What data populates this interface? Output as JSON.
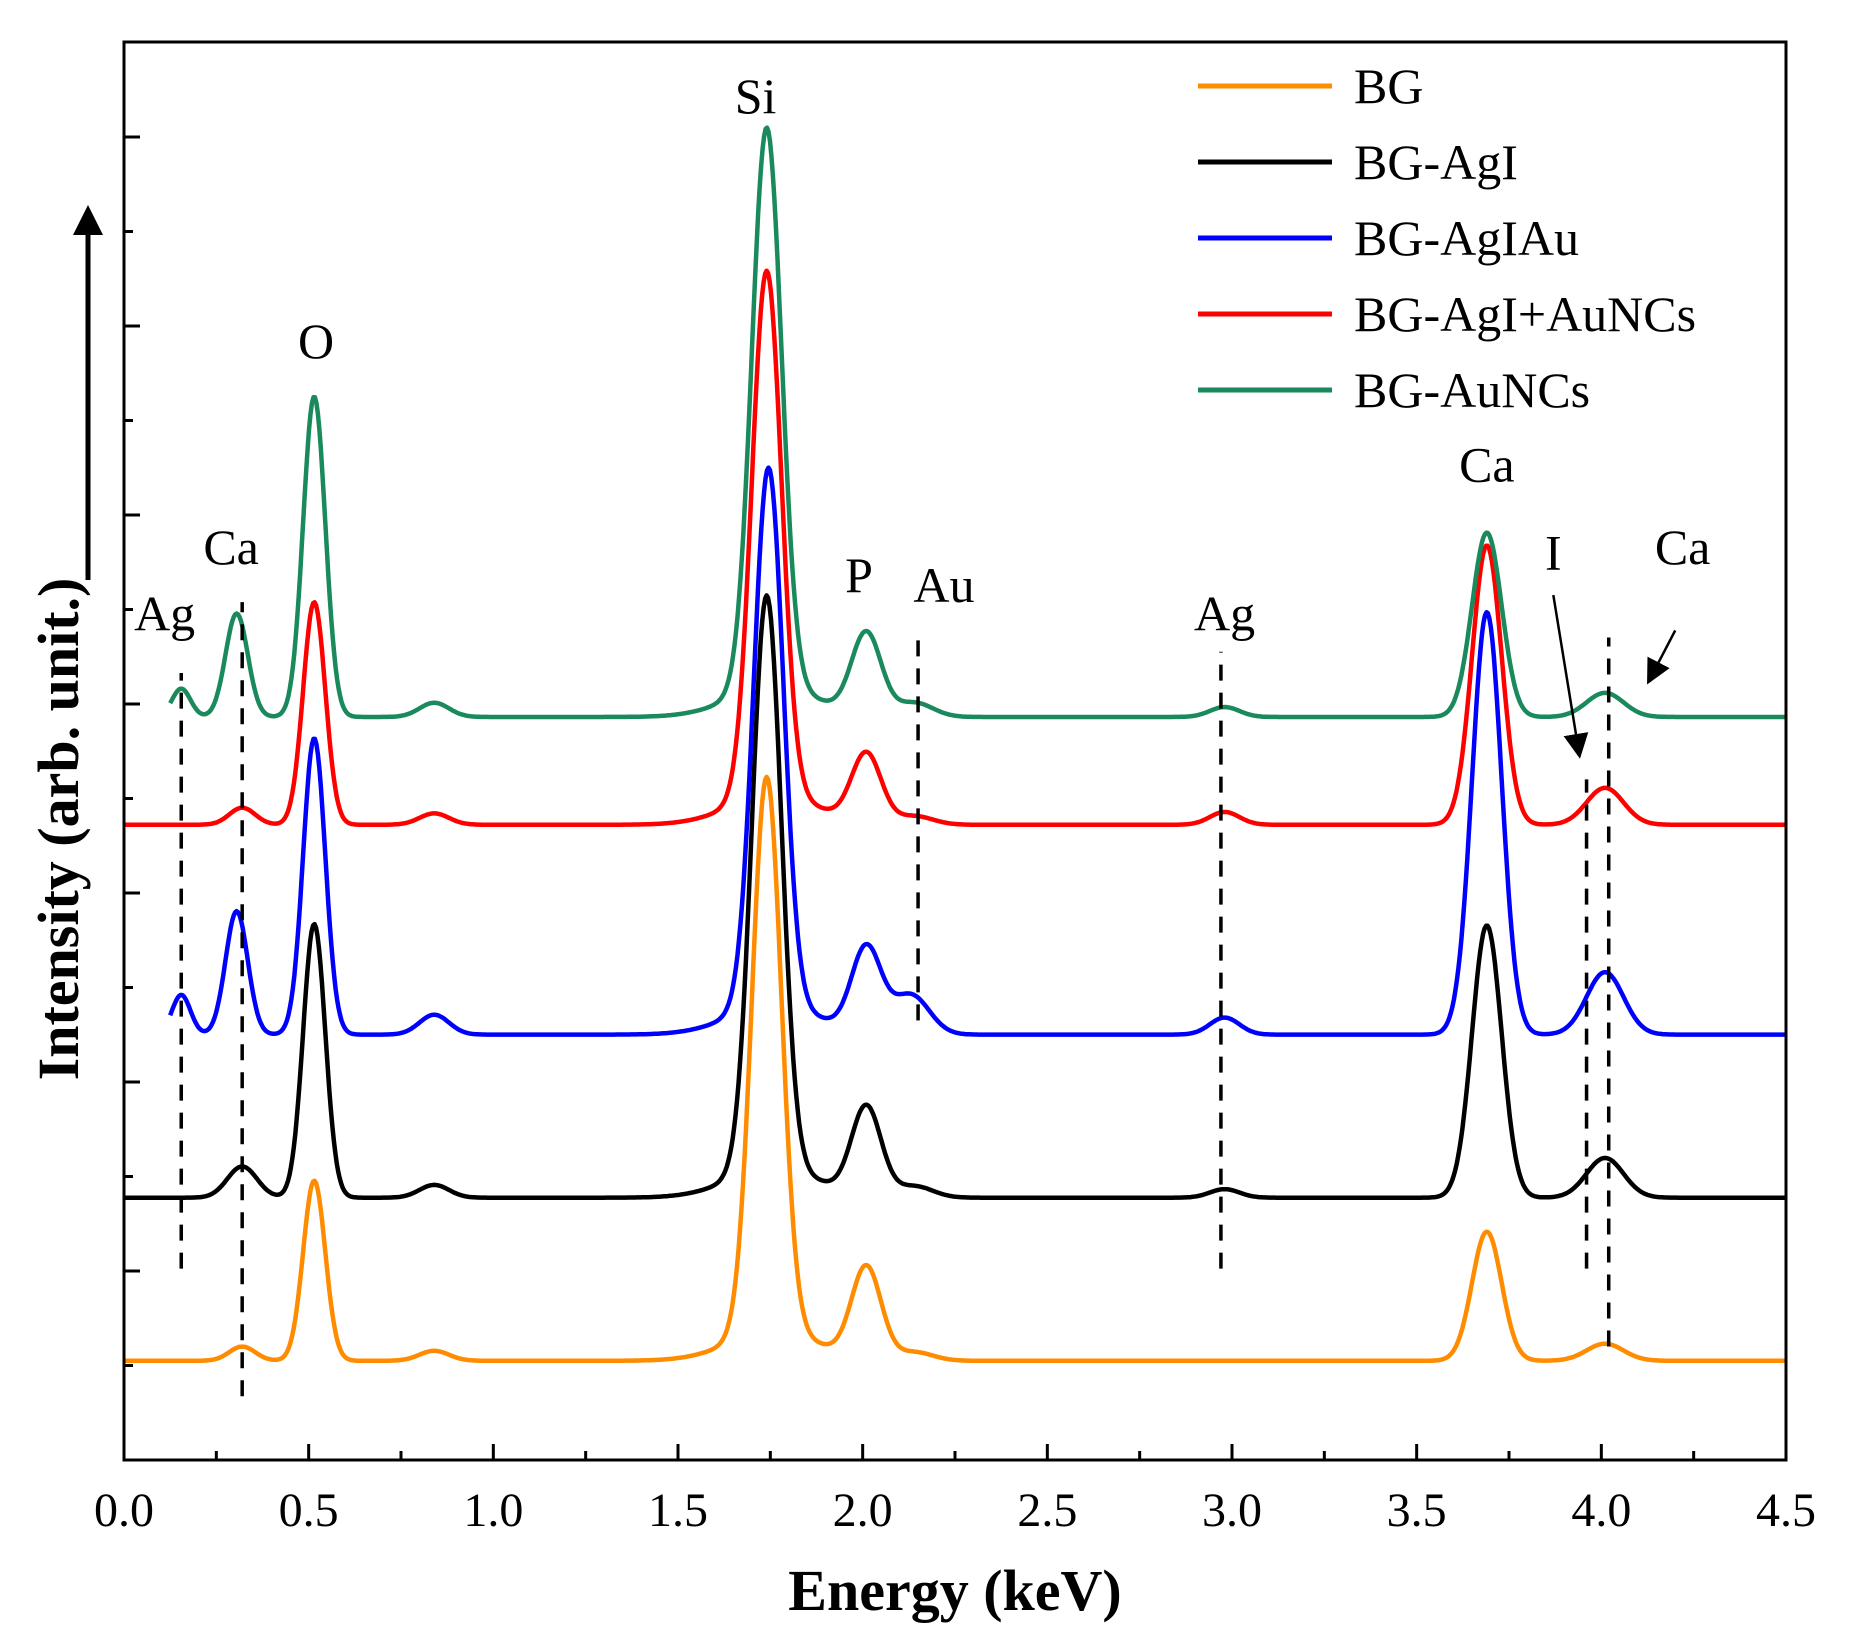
{
  "chart_data": {
    "type": "line",
    "title": "",
    "xlabel": "Energy (keV)",
    "ylabel": "Intensity (arb. unit.)",
    "xlim": [
      0.0,
      4.5
    ],
    "ylim": [
      0,
      1
    ],
    "xticks": [
      "0.0",
      "0.5",
      "1.0",
      "1.5",
      "2.0",
      "2.5",
      "3.0",
      "3.5",
      "4.0",
      "4.5"
    ],
    "y_tick_labels_shown": false,
    "grid": false,
    "legend_position": "top-right",
    "series": [
      {
        "name": "BG",
        "color": "#ff8c00",
        "baseline": 0.07,
        "peaks": [
          {
            "x": 0.32,
            "h": 0.01,
            "w": 0.035
          },
          {
            "x": 0.515,
            "h": 0.127,
            "w": 0.03
          },
          {
            "x": 0.84,
            "h": 0.007,
            "w": 0.04
          },
          {
            "x": 1.74,
            "h": 0.392,
            "w": 0.04
          },
          {
            "x": 1.76,
            "h": 0.02,
            "w": 0.12
          },
          {
            "x": 2.01,
            "h": 0.065,
            "w": 0.04
          },
          {
            "x": 2.14,
            "h": 0.006,
            "w": 0.05
          },
          {
            "x": 3.69,
            "h": 0.091,
            "w": 0.04
          },
          {
            "x": 4.01,
            "h": 0.012,
            "w": 0.05
          }
        ]
      },
      {
        "name": "BG-AgI",
        "color": "#000000",
        "baseline": 0.185,
        "peaks": [
          {
            "x": 0.32,
            "h": 0.022,
            "w": 0.04
          },
          {
            "x": 0.515,
            "h": 0.193,
            "w": 0.03
          },
          {
            "x": 0.84,
            "h": 0.009,
            "w": 0.04
          },
          {
            "x": 1.74,
            "h": 0.405,
            "w": 0.04
          },
          {
            "x": 1.76,
            "h": 0.02,
            "w": 0.12
          },
          {
            "x": 2.01,
            "h": 0.063,
            "w": 0.04
          },
          {
            "x": 2.14,
            "h": 0.008,
            "w": 0.05
          },
          {
            "x": 2.98,
            "h": 0.006,
            "w": 0.04
          },
          {
            "x": 3.69,
            "h": 0.192,
            "w": 0.04
          },
          {
            "x": 4.01,
            "h": 0.028,
            "w": 0.05
          }
        ]
      },
      {
        "name": "BG-AgIAu",
        "color": "#0000ff",
        "baseline": 0.3,
        "peaks": [
          {
            "x": 0.155,
            "h": 0.028,
            "w": 0.025
          },
          {
            "x": 0.305,
            "h": 0.087,
            "w": 0.03
          },
          {
            "x": 0.515,
            "h": 0.209,
            "w": 0.03
          },
          {
            "x": 0.84,
            "h": 0.014,
            "w": 0.04
          },
          {
            "x": 1.745,
            "h": 0.38,
            "w": 0.04
          },
          {
            "x": 1.76,
            "h": 0.02,
            "w": 0.12
          },
          {
            "x": 2.01,
            "h": 0.06,
            "w": 0.04
          },
          {
            "x": 2.13,
            "h": 0.028,
            "w": 0.05
          },
          {
            "x": 2.98,
            "h": 0.012,
            "w": 0.04
          },
          {
            "x": 3.69,
            "h": 0.298,
            "w": 0.04
          },
          {
            "x": 4.01,
            "h": 0.044,
            "w": 0.05
          }
        ]
      },
      {
        "name": "BG-AgI+AuNCs",
        "color": "#ff0000",
        "baseline": 0.448,
        "peaks": [
          {
            "x": 0.32,
            "h": 0.012,
            "w": 0.035
          },
          {
            "x": 0.515,
            "h": 0.157,
            "w": 0.03
          },
          {
            "x": 0.84,
            "h": 0.008,
            "w": 0.04
          },
          {
            "x": 1.74,
            "h": 0.371,
            "w": 0.04
          },
          {
            "x": 1.76,
            "h": 0.02,
            "w": 0.12
          },
          {
            "x": 2.01,
            "h": 0.049,
            "w": 0.04
          },
          {
            "x": 2.14,
            "h": 0.006,
            "w": 0.05
          },
          {
            "x": 2.98,
            "h": 0.009,
            "w": 0.04
          },
          {
            "x": 3.69,
            "h": 0.197,
            "w": 0.04
          },
          {
            "x": 4.01,
            "h": 0.026,
            "w": 0.05
          }
        ]
      },
      {
        "name": "BG-AuNCs",
        "color": "#1a8a5c",
        "baseline": 0.524,
        "peaks": [
          {
            "x": 0.155,
            "h": 0.02,
            "w": 0.025
          },
          {
            "x": 0.305,
            "h": 0.073,
            "w": 0.03
          },
          {
            "x": 0.515,
            "h": 0.226,
            "w": 0.03
          },
          {
            "x": 0.84,
            "h": 0.01,
            "w": 0.04
          },
          {
            "x": 1.74,
            "h": 0.396,
            "w": 0.04
          },
          {
            "x": 1.76,
            "h": 0.02,
            "w": 0.12
          },
          {
            "x": 2.01,
            "h": 0.058,
            "w": 0.04
          },
          {
            "x": 2.14,
            "h": 0.01,
            "w": 0.05
          },
          {
            "x": 2.98,
            "h": 0.007,
            "w": 0.04
          },
          {
            "x": 3.69,
            "h": 0.13,
            "w": 0.04
          },
          {
            "x": 4.01,
            "h": 0.017,
            "w": 0.05
          }
        ]
      }
    ],
    "reference_lines": [
      {
        "label": "Ag",
        "x": 0.155,
        "y_from": 0.135,
        "y_to": 0.555
      },
      {
        "label": "Ca",
        "x": 0.32,
        "y_from": 0.045,
        "y_to": 0.605
      },
      {
        "label": "Au",
        "x": 2.15,
        "y_from": 0.31,
        "y_to": 0.585
      },
      {
        "label": "Ag",
        "x": 2.97,
        "y_from": 0.135,
        "y_to": 0.57
      },
      {
        "label": "I",
        "x": 3.96,
        "y_from": 0.135,
        "y_to": 0.48
      },
      {
        "label": "Ca",
        "x": 4.02,
        "y_from": 0.08,
        "y_to": 0.58
      }
    ],
    "annotations": [
      {
        "text": "Ag",
        "x": 0.11,
        "y": 0.585
      },
      {
        "text": "Ca",
        "x": 0.29,
        "y": 0.632
      },
      {
        "text": "O",
        "x": 0.52,
        "y": 0.777
      },
      {
        "text": "Si",
        "x": 1.71,
        "y": 0.95
      },
      {
        "text": "P",
        "x": 1.99,
        "y": 0.612
      },
      {
        "text": "Au",
        "x": 2.22,
        "y": 0.605
      },
      {
        "text": "Ag",
        "x": 2.98,
        "y": 0.585
      },
      {
        "text": "Ca",
        "x": 3.69,
        "y": 0.69
      },
      {
        "text": "I",
        "x": 3.87,
        "y": 0.628
      },
      {
        "text": "Ca",
        "x": 4.22,
        "y": 0.632
      }
    ],
    "arrows": [
      {
        "from": [
          3.87,
          0.61
        ],
        "to": [
          3.94,
          0.498
        ]
      },
      {
        "from": [
          4.2,
          0.585
        ],
        "to": [
          4.13,
          0.55
        ]
      }
    ]
  }
}
